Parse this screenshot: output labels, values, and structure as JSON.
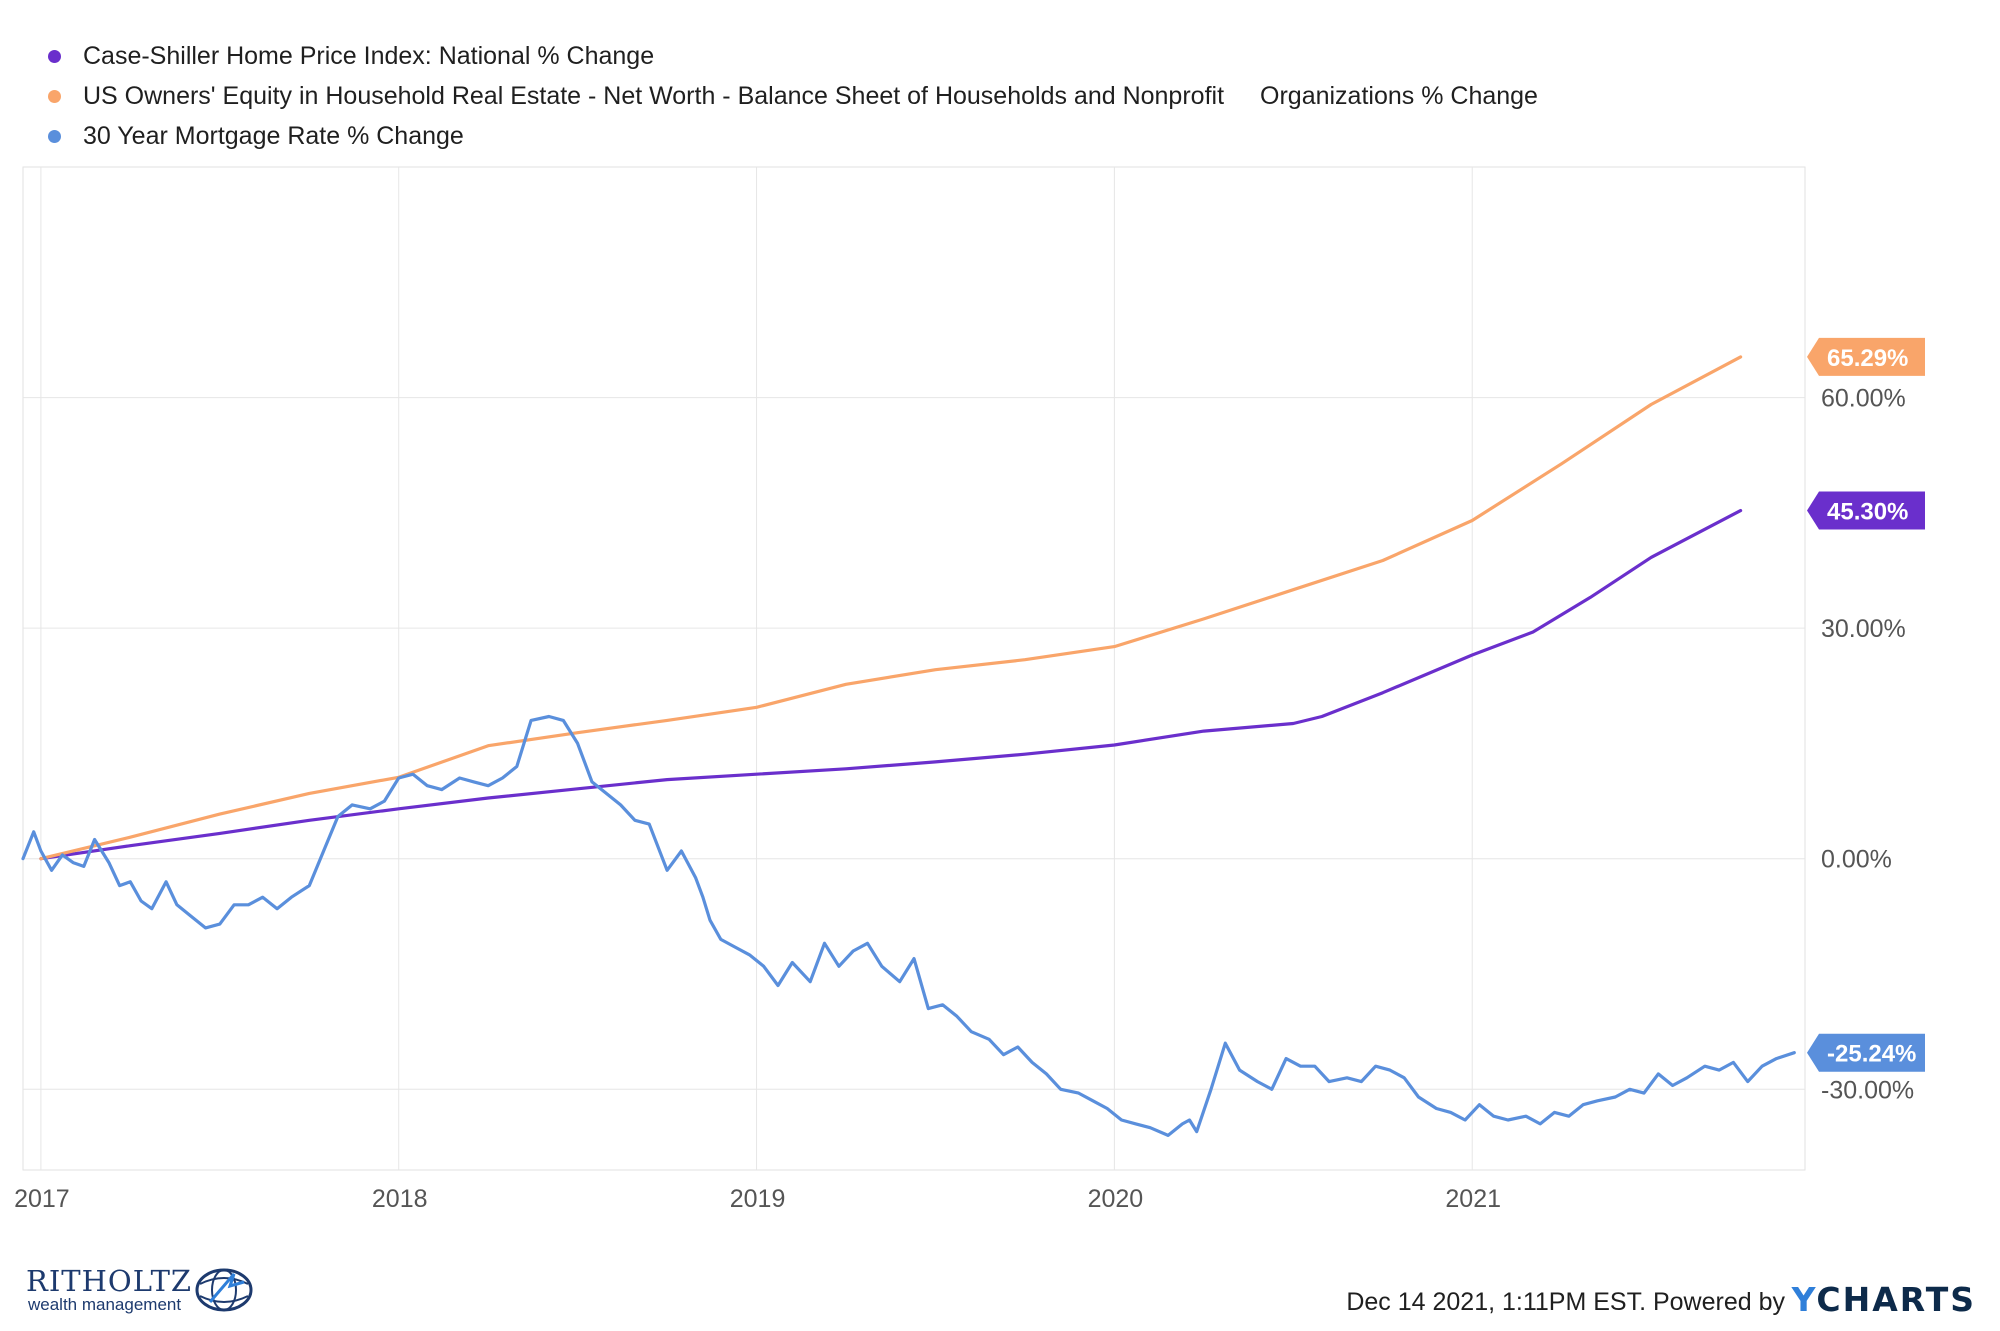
{
  "legend": {
    "items": [
      {
        "label": "Case-Shiller Home Price Index: National % Change",
        "color": "#6a2fcc"
      },
      {
        "label_part1": "US Owners' Equity in Household Real Estate - Net Worth - Balance Sheet of Households and Nonprofit",
        "label_part2": "Organizations % Change",
        "color": "#f9a56a"
      },
      {
        "label": "30 Year Mortgage Rate % Change",
        "color": "#5a8fdc"
      }
    ]
  },
  "footer": {
    "timestamp": "Dec 14 2021, 1:11PM EST. Powered by",
    "brand_y": "Y",
    "brand_rest": "CHARTS"
  },
  "logo": {
    "name": "RITHOLTZ",
    "sub": "wealth management"
  },
  "chart_data": {
    "type": "line",
    "title": "",
    "xlabel": "",
    "ylabel": "",
    "xlim": [
      2016.95,
      2021.93
    ],
    "ylim": [
      -40.5,
      90
    ],
    "x_ticks": [
      2017,
      2018,
      2019,
      2020,
      2021
    ],
    "x_tick_labels": [
      "2017",
      "2018",
      "2019",
      "2020",
      "2021"
    ],
    "y_ticks": [
      -30,
      0,
      30,
      60
    ],
    "y_tick_labels": [
      "-30.00%",
      "0.00%",
      "30.00%",
      "60.00%"
    ],
    "grid": true,
    "legend_position": "top-left",
    "series": [
      {
        "name": "Case-Shiller Home Price Index: National % Change",
        "color": "#6a2fcc",
        "end_label": "45.30%",
        "x": [
          2017.0,
          2017.25,
          2017.5,
          2017.75,
          2018.0,
          2018.25,
          2018.5,
          2018.75,
          2019.0,
          2019.25,
          2019.5,
          2019.75,
          2020.0,
          2020.25,
          2020.5,
          2020.58,
          2020.75,
          2021.0,
          2021.17,
          2021.33,
          2021.5,
          2021.75
        ],
        "values": [
          0.0,
          1.7,
          3.3,
          5.0,
          6.5,
          7.9,
          9.1,
          10.3,
          11.0,
          11.7,
          12.6,
          13.6,
          14.8,
          16.6,
          17.6,
          18.5,
          21.6,
          26.5,
          29.5,
          34.0,
          39.2,
          45.3
        ]
      },
      {
        "name": "US Owners' Equity in Household Real Estate - Net Worth - Balance Sheet of Households and Nonprofit Organizations % Change",
        "color": "#f9a56a",
        "end_label": "65.29%",
        "x": [
          2017.0,
          2017.25,
          2017.5,
          2017.75,
          2018.0,
          2018.25,
          2018.5,
          2018.75,
          2019.0,
          2019.25,
          2019.5,
          2019.75,
          2020.0,
          2020.25,
          2020.5,
          2020.75,
          2021.0,
          2021.25,
          2021.5,
          2021.75
        ],
        "values": [
          0.0,
          2.8,
          5.8,
          8.5,
          10.6,
          14.7,
          16.4,
          18.0,
          19.7,
          22.7,
          24.6,
          25.9,
          27.6,
          31.2,
          35.0,
          38.8,
          44.0,
          51.4,
          59.1,
          65.29
        ]
      },
      {
        "name": "30 Year Mortgage Rate % Change",
        "color": "#5a8fdc",
        "end_label": "-25.24%",
        "x": [
          2016.95,
          2016.98,
          2017.0,
          2017.03,
          2017.06,
          2017.09,
          2017.12,
          2017.15,
          2017.19,
          2017.22,
          2017.25,
          2017.28,
          2017.31,
          2017.35,
          2017.38,
          2017.42,
          2017.46,
          2017.5,
          2017.54,
          2017.58,
          2017.62,
          2017.66,
          2017.7,
          2017.75,
          2017.79,
          2017.83,
          2017.87,
          2017.92,
          2017.96,
          2018.0,
          2018.04,
          2018.08,
          2018.12,
          2018.17,
          2018.21,
          2018.25,
          2018.29,
          2018.33,
          2018.37,
          2018.42,
          2018.46,
          2018.5,
          2018.54,
          2018.58,
          2018.62,
          2018.66,
          2018.7,
          2018.75,
          2018.79,
          2018.83,
          2018.85,
          2018.87,
          2018.9,
          2018.94,
          2018.98,
          2019.02,
          2019.06,
          2019.1,
          2019.15,
          2019.19,
          2019.23,
          2019.27,
          2019.31,
          2019.35,
          2019.4,
          2019.44,
          2019.48,
          2019.52,
          2019.56,
          2019.6,
          2019.65,
          2019.69,
          2019.73,
          2019.77,
          2019.81,
          2019.85,
          2019.9,
          2019.94,
          2019.98,
          2020.02,
          2020.06,
          2020.1,
          2020.15,
          2020.19,
          2020.21,
          2020.23,
          2020.27,
          2020.31,
          2020.35,
          2020.4,
          2020.44,
          2020.48,
          2020.52,
          2020.56,
          2020.6,
          2020.65,
          2020.69,
          2020.73,
          2020.77,
          2020.81,
          2020.85,
          2020.9,
          2020.94,
          2020.98,
          2021.02,
          2021.06,
          2021.1,
          2021.15,
          2021.19,
          2021.23,
          2021.27,
          2021.31,
          2021.35,
          2021.4,
          2021.44,
          2021.48,
          2021.52,
          2021.56,
          2021.6,
          2021.65,
          2021.69,
          2021.73,
          2021.77,
          2021.81,
          2021.85,
          2021.9
        ],
        "values": [
          0.0,
          3.5,
          1.0,
          -1.5,
          0.5,
          -0.5,
          -1.0,
          2.5,
          -0.5,
          -3.5,
          -3.0,
          -5.5,
          -6.5,
          -3.0,
          -6.0,
          -7.5,
          -9.0,
          -8.5,
          -6.0,
          -6.0,
          -5.0,
          -6.5,
          -5.0,
          -3.5,
          1.0,
          5.5,
          7.0,
          6.5,
          7.5,
          10.5,
          11.0,
          9.5,
          9.0,
          10.5,
          10.0,
          9.5,
          10.5,
          12.0,
          18.0,
          18.5,
          18.0,
          15.0,
          10.0,
          8.5,
          7.0,
          5.0,
          4.5,
          -1.5,
          1.0,
          -2.5,
          -5.0,
          -8.0,
          -10.5,
          -11.5,
          -12.5,
          -14.0,
          -16.5,
          -13.5,
          -16.0,
          -11.0,
          -14.0,
          -12.0,
          -11.0,
          -14.0,
          -16.0,
          -13.0,
          -19.5,
          -19.0,
          -20.5,
          -22.5,
          -23.5,
          -25.5,
          -24.5,
          -26.5,
          -28.0,
          -30.0,
          -30.5,
          -31.5,
          -32.5,
          -34.0,
          -34.5,
          -35.0,
          -36.0,
          -34.5,
          -34.0,
          -35.5,
          -30.0,
          -24.0,
          -27.5,
          -29.0,
          -30.0,
          -26.0,
          -27.0,
          -27.0,
          -29.0,
          -28.5,
          -29.0,
          -27.0,
          -27.5,
          -28.5,
          -31.0,
          -32.5,
          -33.0,
          -34.0,
          -32.0,
          -33.5,
          -34.0,
          -33.5,
          -34.5,
          -33.0,
          -33.5,
          -32.0,
          -31.5,
          -31.0,
          -30.0,
          -30.5,
          -28.0,
          -29.5,
          -28.5,
          -27.0,
          -27.5,
          -26.5,
          -29.0,
          -27.0,
          -26.0,
          -25.24
        ]
      }
    ]
  }
}
